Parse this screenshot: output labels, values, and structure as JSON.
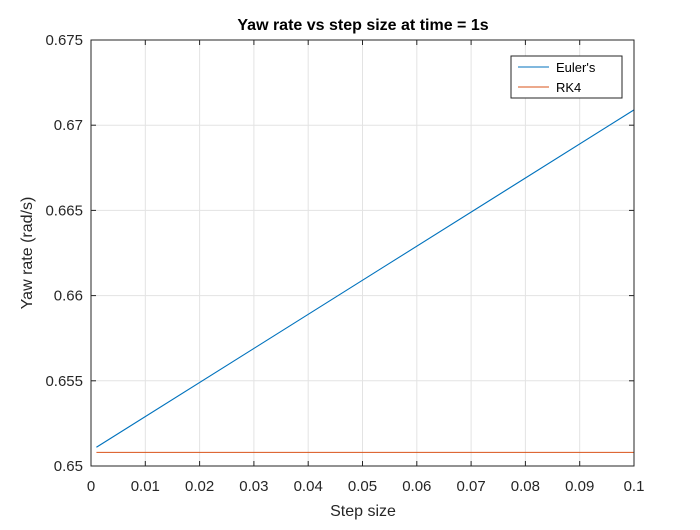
{
  "chart_data": {
    "type": "line",
    "title": "Yaw rate vs step size at time = 1s",
    "xlabel": "Step size",
    "ylabel": "Yaw rate (rad/s)",
    "xlim": [
      0,
      0.1
    ],
    "ylim": [
      0.65,
      0.675
    ],
    "xticks": [
      0,
      0.01,
      0.02,
      0.03,
      0.04,
      0.05,
      0.06,
      0.07,
      0.08,
      0.09,
      0.1
    ],
    "xtick_labels": [
      "0",
      "0.01",
      "0.02",
      "0.03",
      "0.04",
      "0.05",
      "0.06",
      "0.07",
      "0.08",
      "0.09",
      "0.1"
    ],
    "yticks": [
      0.65,
      0.655,
      0.66,
      0.665,
      0.67,
      0.675
    ],
    "ytick_labels": [
      "0.65",
      "0.655",
      "0.66",
      "0.665",
      "0.67",
      "0.675"
    ],
    "grid": true,
    "legend_position": "top-right",
    "series": [
      {
        "name": "Euler's",
        "color": "#0072BD",
        "x": [
          0.001,
          0.1
        ],
        "y": [
          0.6511,
          0.6709
        ]
      },
      {
        "name": "RK4",
        "color": "#D95319",
        "x": [
          0.001,
          0.1
        ],
        "y": [
          0.6508,
          0.6508
        ]
      }
    ]
  }
}
